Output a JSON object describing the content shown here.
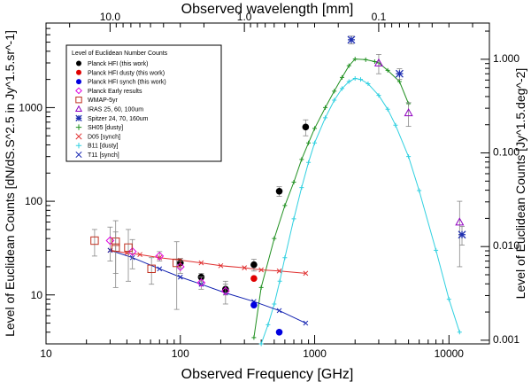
{
  "chart_data": {
    "type": "scatter",
    "xlabel_bottom": "Observed Frequency [GHz]",
    "xlabel_top": "Observed wavelength [mm]",
    "ylabel_left": "Level of Euclidean Counts [dN/dS.S^2.5 in Jy^1.5.sr^-1]",
    "ylabel_right": "Level of Euclidean Counts [Jy^1.5.deg^-2]",
    "xscale": "log",
    "yscale": "log",
    "xlim": [
      10,
      20000
    ],
    "ylim": [
      3,
      8000
    ],
    "xticks": [
      10,
      100,
      1000,
      10000
    ],
    "xtick_labels": [
      "10",
      "100",
      "1000",
      "10000"
    ],
    "yticks": [
      10,
      100,
      1000
    ],
    "ytick_labels": [
      "10",
      "100",
      "1000"
    ],
    "top_ticks_mm": [
      10,
      1,
      0.1
    ],
    "top_tick_labels": [
      "10.0",
      "1.0",
      "0.1"
    ],
    "right_ticks": [
      0.001,
      0.01,
      0.1,
      1
    ],
    "right_tick_labels": [
      "0.001",
      "0.010",
      "0.100",
      "1.000"
    ],
    "legend_title": "Level of Euclidean Number Counts",
    "legend_position": "upper-left",
    "legend": [
      {
        "label": "Planck HFI (this work)",
        "marker": "filled-circle",
        "color": "#000000"
      },
      {
        "label": "Planck HFI dusty (this work)",
        "marker": "filled-circle",
        "color": "#e00000"
      },
      {
        "label": "Planck HFI synch (this work)",
        "marker": "filled-circle",
        "color": "#0000e0"
      },
      {
        "label": "Planck Early results",
        "marker": "diamond",
        "color": "#e000e0"
      },
      {
        "label": "WMAP-5yr",
        "marker": "square",
        "color": "#c03020"
      },
      {
        "label": "IRAS 25, 60, 100um",
        "marker": "triangle",
        "color": "#9000c0"
      },
      {
        "label": "Spitzer 24, 70, 160um",
        "marker": "asterisk",
        "color": "#2030b0"
      },
      {
        "label": "SH05 [dusty]",
        "marker": "plus",
        "color": "#209020"
      },
      {
        "label": "D05 [synch]",
        "marker": "cross",
        "color": "#e03030"
      },
      {
        "label": "B11 [dusty]",
        "marker": "plus",
        "color": "#30d0e0"
      },
      {
        "label": "T11 [synch]",
        "marker": "cross",
        "color": "#1020b0"
      }
    ],
    "series": [
      {
        "name": "Planck HFI (this work)",
        "marker": "filled-circle",
        "color": "#000000",
        "points": [
          [
            100,
            22,
            2.5
          ],
          [
            143,
            15.5,
            1.5
          ],
          [
            217,
            11.5,
            1.5
          ],
          [
            353,
            21,
            3
          ],
          [
            545,
            128,
            15
          ],
          [
            857,
            620,
            120
          ]
        ]
      },
      {
        "name": "Planck HFI dusty (this work)",
        "marker": "filled-circle",
        "color": "#e00000",
        "points": [
          [
            353,
            15,
            0
          ]
        ]
      },
      {
        "name": "Planck HFI synch (this work)",
        "marker": "filled-circle",
        "color": "#0000e0",
        "points": [
          [
            353,
            7.8,
            0
          ],
          [
            545,
            4,
            0
          ]
        ]
      },
      {
        "name": "Planck Early results",
        "marker": "diamond",
        "color": "#e000e0",
        "points": [
          [
            30,
            38,
            15
          ],
          [
            44,
            29,
            10
          ],
          [
            70,
            26,
            3
          ],
          [
            100,
            20,
            3
          ],
          [
            143,
            13.5,
            2
          ],
          [
            217,
            11,
            3
          ]
        ]
      },
      {
        "name": "WMAP-5yr",
        "marker": "square",
        "color": "#c03020",
        "points": [
          [
            23,
            38,
            12
          ],
          [
            33,
            37,
            25
          ],
          [
            33,
            32,
            15
          ],
          [
            41,
            32,
            18
          ],
          [
            61,
            19,
            6
          ],
          [
            94,
            22,
            15
          ]
        ]
      },
      {
        "name": "IRAS 25, 60, 100um",
        "marker": "triangle",
        "color": "#9000c0",
        "points": [
          [
            3000,
            3000,
            700
          ],
          [
            5000,
            880,
            250
          ],
          [
            12000,
            60,
            40
          ]
        ]
      },
      {
        "name": "Spitzer 24, 70, 160um",
        "marker": "asterisk",
        "color": "#2030b0",
        "points": [
          [
            1875,
            5300,
            500
          ],
          [
            4283,
            2300,
            300
          ],
          [
            12500,
            44,
            10
          ]
        ]
      }
    ],
    "models": [
      {
        "name": "SH05 [dusty]",
        "color": "#209020",
        "x": [
          353,
          400,
          500,
          600,
          700,
          800,
          900,
          1000,
          1200,
          1400,
          1600,
          1800,
          2000,
          2400,
          2800,
          3000,
          3500,
          4283,
          5000
        ],
        "y": [
          3.5,
          12,
          40,
          90,
          160,
          280,
          420,
          600,
          1000,
          1500,
          2100,
          2800,
          3300,
          3250,
          3100,
          3000,
          2500,
          1900,
          1100
        ]
      },
      {
        "name": "D05 [synch]",
        "color": "#e03030",
        "x": [
          30,
          40,
          50,
          70,
          100,
          143,
          200,
          300,
          400,
          545,
          857
        ],
        "y": [
          30,
          28,
          27,
          25,
          23.5,
          22,
          20.5,
          19.5,
          18.5,
          18,
          17
        ]
      },
      {
        "name": "B11 [dusty]",
        "color": "#30d0e0",
        "x": [
          400,
          450,
          500,
          550,
          600,
          700,
          800,
          900,
          1000,
          1200,
          1400,
          1600,
          1800,
          2000,
          2200,
          2500,
          3000,
          3500,
          4000,
          5000,
          6000,
          8000,
          10000,
          12000,
          15000,
          20000
        ],
        "y": [
          3,
          4.8,
          8,
          14,
          25,
          65,
          140,
          260,
          420,
          780,
          1200,
          1600,
          1900,
          2050,
          2000,
          1800,
          1350,
          960,
          650,
          300,
          130,
          30,
          9,
          4,
          1.2,
          0.3
        ]
      },
      {
        "name": "T11 [synch]",
        "color": "#1020b0",
        "x": [
          30,
          44,
          70,
          100,
          143,
          217,
          353,
          545,
          857
        ],
        "y": [
          30,
          25,
          19,
          15.5,
          13,
          10.5,
          8.5,
          6.8,
          5
        ]
      }
    ]
  }
}
